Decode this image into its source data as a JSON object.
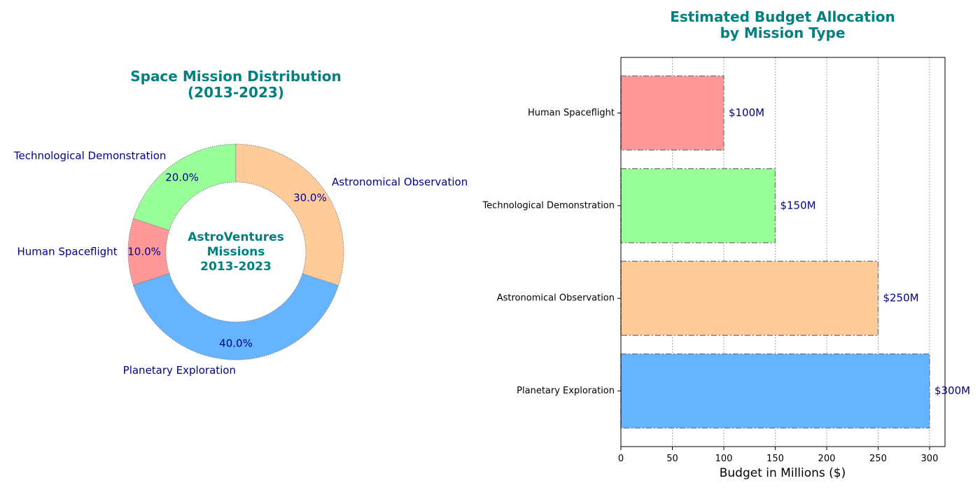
{
  "chart_data": [
    {
      "type": "pie",
      "donut": true,
      "title": [
        "Space Mission Distribution",
        "(2013-2023)"
      ],
      "center_text": [
        "AstroVentures",
        "Missions",
        "2013-2023"
      ],
      "start_angle_deg": 90,
      "counterclock": true,
      "slices": [
        {
          "label": "Technological Demonstration",
          "value": 20.0,
          "pct_text": "20.0%",
          "color": "#99ff99"
        },
        {
          "label": "Human Spaceflight",
          "value": 10.0,
          "pct_text": "10.0%",
          "color": "#ff9999"
        },
        {
          "label": "Planetary Exploration",
          "value": 40.0,
          "pct_text": "40.0%",
          "color": "#66b3ff"
        },
        {
          "label": "Astronomical Observation",
          "value": 30.0,
          "pct_text": "30.0%",
          "color": "#ffcc99"
        }
      ],
      "edge_color": "#808080",
      "title_color": "#008080",
      "label_color": "#00008b"
    },
    {
      "type": "bar",
      "orientation": "horizontal",
      "title": [
        "Estimated Budget Allocation",
        "by Mission Type"
      ],
      "xlabel": "Budget in Millions ($)",
      "ylabel": "",
      "xlim": [
        0,
        315
      ],
      "xticks": [
        0,
        50,
        100,
        150,
        200,
        250,
        300
      ],
      "grid": "x",
      "categories": [
        "Planetary Exploration",
        "Astronomical Observation",
        "Technological Demonstration",
        "Human Spaceflight"
      ],
      "values": [
        300,
        250,
        150,
        100
      ],
      "value_labels": [
        "$300M",
        "$250M",
        "$150M",
        "$100M"
      ],
      "colors": [
        "#66b3ff",
        "#ffcc99",
        "#99ff99",
        "#ff9999"
      ],
      "edge_color": "#808080",
      "title_color": "#008080",
      "label_color": "#00008b"
    }
  ]
}
